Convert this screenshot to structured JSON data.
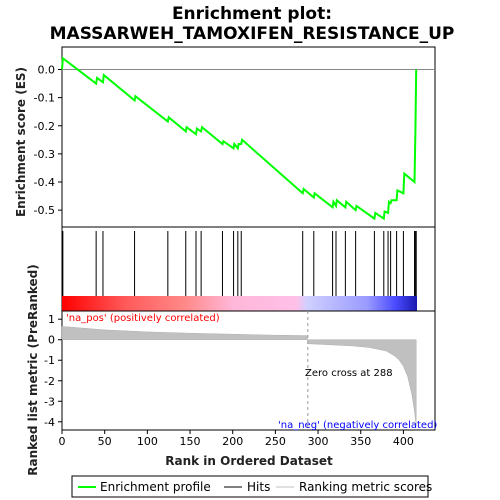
{
  "chart_data": {
    "type": "line",
    "title_lines": [
      "Enrichment plot:",
      "MASSARWEH_TAMOXIFEN_RESISTANCE_UP"
    ],
    "xlabel": "Rank in Ordered Dataset",
    "top_ylabel": "Enrichment score (ES)",
    "bottom_ylabel": "Ranked list metric (PreRanked)",
    "xlim": [
      0,
      437
    ],
    "x_ticks": [
      0,
      50,
      100,
      150,
      200,
      250,
      300,
      350,
      400
    ],
    "top_ylim": [
      -0.56,
      0.08
    ],
    "top_y_ticks": [
      0.0,
      -0.1,
      -0.2,
      -0.3,
      -0.4,
      -0.5
    ],
    "top_y_tick_labels": [
      "0.0",
      "-0.1",
      "-0.2",
      "-0.3",
      "-0.4",
      "-0.5"
    ],
    "bottom_ylim": [
      -4.4,
      1.4
    ],
    "bottom_y_ticks": [
      1,
      0,
      -1,
      -2,
      -3,
      -4
    ],
    "bottom_y_tick_labels": [
      "1",
      "0",
      "-1",
      "-2",
      "-3",
      "-4"
    ],
    "enrichment_profile": {
      "x": [
        0,
        1,
        40,
        41,
        48,
        49,
        85,
        86,
        124,
        125,
        145,
        146,
        157,
        158,
        163,
        164,
        188,
        189,
        201,
        202,
        206,
        207,
        210,
        211,
        282,
        283,
        295,
        296,
        317,
        318,
        321,
        322,
        332,
        333,
        344,
        345,
        366,
        367,
        377,
        378,
        382,
        383,
        385,
        386,
        392,
        393,
        400,
        401,
        413,
        414,
        415
      ],
      "y": [
        0.0,
        0.04,
        -0.05,
        -0.03,
        -0.045,
        -0.02,
        -0.11,
        -0.095,
        -0.185,
        -0.17,
        -0.22,
        -0.205,
        -0.23,
        -0.21,
        -0.22,
        -0.205,
        -0.265,
        -0.255,
        -0.28,
        -0.265,
        -0.28,
        -0.265,
        -0.265,
        -0.25,
        -0.44,
        -0.425,
        -0.455,
        -0.44,
        -0.49,
        -0.47,
        -0.485,
        -0.465,
        -0.49,
        -0.47,
        -0.5,
        -0.485,
        -0.53,
        -0.51,
        -0.53,
        -0.505,
        -0.51,
        -0.47,
        -0.475,
        -0.465,
        -0.465,
        -0.43,
        -0.44,
        -0.37,
        -0.4,
        -0.22,
        0.0
      ],
      "color": "#00ff00"
    },
    "hits": [
      1,
      40,
      48,
      85,
      124,
      145,
      157,
      163,
      188,
      201,
      206,
      210,
      282,
      295,
      317,
      321,
      332,
      344,
      366,
      377,
      382,
      385,
      392,
      400,
      413,
      414,
      415
    ],
    "ranking_metric": {
      "x": [
        0,
        50,
        100,
        150,
        200,
        250,
        287,
        288,
        300,
        340,
        360,
        380,
        390,
        395,
        400,
        405,
        410,
        413,
        415
      ],
      "y": [
        0.65,
        0.48,
        0.38,
        0.32,
        0.27,
        0.22,
        0.2,
        -0.2,
        -0.22,
        -0.3,
        -0.38,
        -0.55,
        -0.8,
        -1.0,
        -1.3,
        -1.8,
        -2.7,
        -3.5,
        -4.2
      ]
    },
    "zero_cross_label": "Zero cross at 288",
    "zero_cross_x": 288,
    "pos_label": "'na_pos' (positively correlated)",
    "neg_label": "'na_neg' (negatively correlated)",
    "pos_label_color": "#ff0000",
    "neg_label_color": "#0000ff",
    "legend": [
      "Enrichment profile",
      "Hits",
      "Ranking metric scores"
    ]
  }
}
